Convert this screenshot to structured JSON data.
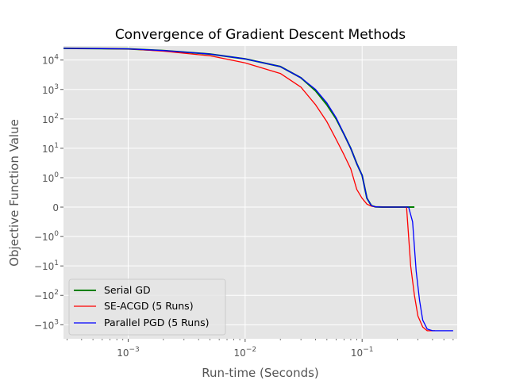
{
  "chart_data": {
    "type": "line",
    "title": "Convergence of Gradient Descent Methods",
    "xlabel": "Run-time (Seconds)",
    "ylabel": "Objective Function Value",
    "xscale": "log",
    "yscale": "symlog",
    "xlim": [
      0.00028,
      0.65
    ],
    "ylim": [
      -3000,
      30000
    ],
    "grid": true,
    "background": "#e5e5e5",
    "legend_position": "lower-left",
    "x_ticks": [
      {
        "value": 0.001,
        "base": "10",
        "exp": "−3"
      },
      {
        "value": 0.01,
        "base": "10",
        "exp": "−2"
      },
      {
        "value": 0.1,
        "base": "10",
        "exp": "−1"
      }
    ],
    "y_ticks": [
      {
        "value": 10000,
        "base": "10",
        "exp": "4"
      },
      {
        "value": 1000,
        "base": "10",
        "exp": "3"
      },
      {
        "value": 100,
        "base": "10",
        "exp": "2"
      },
      {
        "value": 10,
        "base": "10",
        "exp": "1"
      },
      {
        "value": 1,
        "base": "10",
        "exp": "0"
      },
      {
        "value": 0,
        "base": "0",
        "exp": ""
      },
      {
        "value": -1,
        "base": "−10",
        "exp": "0"
      },
      {
        "value": -10,
        "base": "−10",
        "exp": "1"
      },
      {
        "value": -100,
        "base": "−10",
        "exp": "2"
      },
      {
        "value": -1000,
        "base": "−10",
        "exp": "3"
      }
    ],
    "series": [
      {
        "name": "Serial GD",
        "color": "#008000",
        "line_width": 2,
        "points": [
          [
            0.00028,
            25000
          ],
          [
            0.001,
            24000
          ],
          [
            0.002,
            21000
          ],
          [
            0.005,
            16000
          ],
          [
            0.01,
            11000
          ],
          [
            0.02,
            6000
          ],
          [
            0.03,
            2500
          ],
          [
            0.04,
            900
          ],
          [
            0.05,
            300
          ],
          [
            0.06,
            100
          ],
          [
            0.07,
            30
          ],
          [
            0.08,
            10
          ],
          [
            0.09,
            3
          ],
          [
            0.1,
            1.2
          ],
          [
            0.11,
            0.3
          ],
          [
            0.12,
            0.05
          ],
          [
            0.13,
            0.01
          ],
          [
            0.15,
            0
          ],
          [
            0.2,
            0
          ],
          [
            0.25,
            0
          ],
          [
            0.28,
            0
          ]
        ]
      },
      {
        "name": "SE-ACGD (5 Runs)",
        "color": "#ff0000",
        "line_width": 1.3,
        "points": [
          [
            0.00028,
            25000
          ],
          [
            0.001,
            24000
          ],
          [
            0.002,
            20000
          ],
          [
            0.005,
            14000
          ],
          [
            0.01,
            8000
          ],
          [
            0.02,
            3500
          ],
          [
            0.03,
            1200
          ],
          [
            0.04,
            300
          ],
          [
            0.05,
            80
          ],
          [
            0.06,
            20
          ],
          [
            0.07,
            6
          ],
          [
            0.08,
            2
          ],
          [
            0.09,
            0.6
          ],
          [
            0.1,
            0.3
          ],
          [
            0.11,
            0.1
          ],
          [
            0.12,
            0.03
          ],
          [
            0.13,
            0.01
          ],
          [
            0.15,
            0
          ],
          [
            0.2,
            0
          ],
          [
            0.24,
            0
          ],
          [
            0.26,
            -10
          ],
          [
            0.28,
            -100
          ],
          [
            0.3,
            -500
          ],
          [
            0.33,
            -1200
          ],
          [
            0.36,
            -1600
          ],
          [
            0.42,
            -1600
          ]
        ]
      },
      {
        "name": "Parallel PGD (5 Runs)",
        "color": "#0000ff",
        "line_width": 1.3,
        "points": [
          [
            0.00028,
            25000
          ],
          [
            0.001,
            24000
          ],
          [
            0.002,
            21000
          ],
          [
            0.005,
            16000
          ],
          [
            0.01,
            11000
          ],
          [
            0.02,
            6000
          ],
          [
            0.03,
            2500
          ],
          [
            0.04,
            1000
          ],
          [
            0.05,
            350
          ],
          [
            0.06,
            110
          ],
          [
            0.07,
            30
          ],
          [
            0.08,
            10
          ],
          [
            0.09,
            3
          ],
          [
            0.1,
            1.2
          ],
          [
            0.11,
            0.3
          ],
          [
            0.12,
            0.05
          ],
          [
            0.13,
            0.01
          ],
          [
            0.15,
            0
          ],
          [
            0.2,
            0
          ],
          [
            0.25,
            0
          ],
          [
            0.27,
            -0.5
          ],
          [
            0.29,
            -15
          ],
          [
            0.31,
            -150
          ],
          [
            0.33,
            -700
          ],
          [
            0.36,
            -1400
          ],
          [
            0.4,
            -1600
          ],
          [
            0.6,
            -1600
          ]
        ]
      }
    ]
  }
}
